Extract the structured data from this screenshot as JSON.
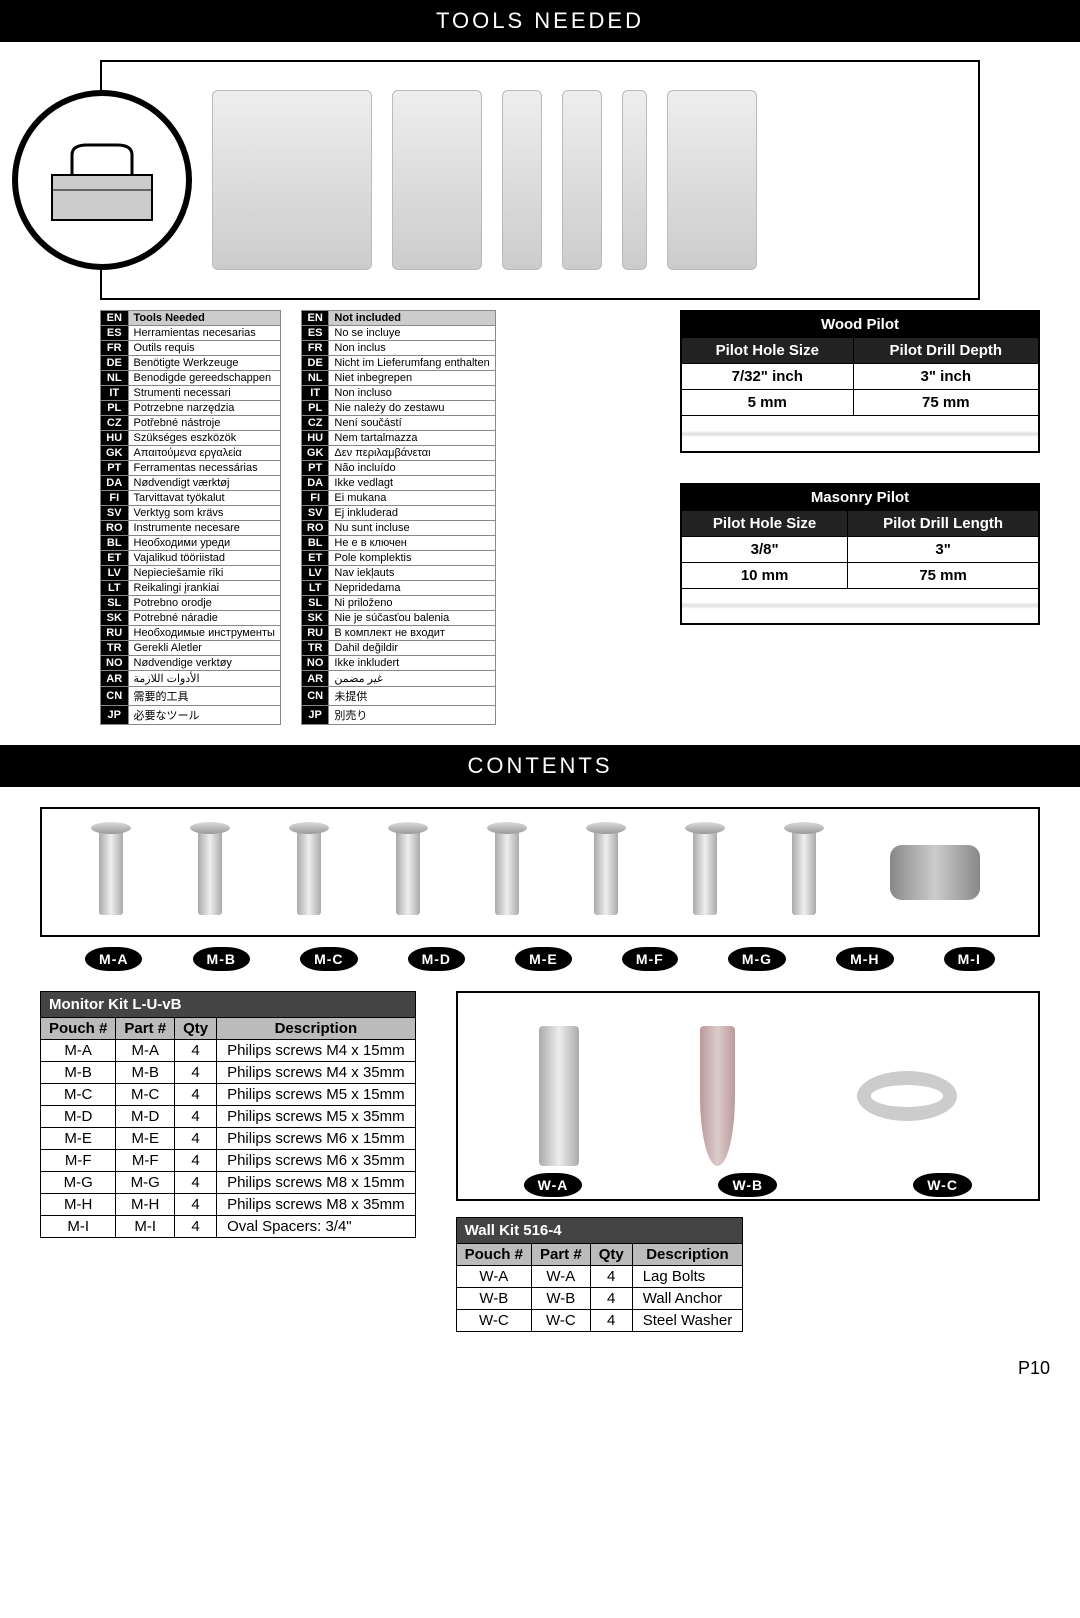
{
  "page_number": "P10",
  "sections": {
    "tools_title": "TOOLS NEEDED",
    "contents_title": "CONTENTS"
  },
  "tools_needed_translations": {
    "header": "Tools Needed",
    "rows": [
      {
        "code": "EN",
        "text": "Tools Needed"
      },
      {
        "code": "ES",
        "text": "Herramientas necesarias"
      },
      {
        "code": "FR",
        "text": "Outils requis"
      },
      {
        "code": "DE",
        "text": "Benötigte Werkzeuge"
      },
      {
        "code": "NL",
        "text": "Benodigde gereedschappen"
      },
      {
        "code": "IT",
        "text": "Strumenti necessari"
      },
      {
        "code": "PL",
        "text": "Potrzebne narzędzia"
      },
      {
        "code": "CZ",
        "text": "Potřebné nástroje"
      },
      {
        "code": "HU",
        "text": "Szükséges eszközök"
      },
      {
        "code": "GK",
        "text": "Απαιτούμενα εργαλεία"
      },
      {
        "code": "PT",
        "text": "Ferramentas necessárias"
      },
      {
        "code": "DA",
        "text": "Nødvendigt værktøj"
      },
      {
        "code": "FI",
        "text": "Tarvittavat työkalut"
      },
      {
        "code": "SV",
        "text": "Verktyg som krävs"
      },
      {
        "code": "RO",
        "text": "Instrumente necesare"
      },
      {
        "code": "BL",
        "text": "Необходими уреди"
      },
      {
        "code": "ET",
        "text": "Vajalikud tööriistad"
      },
      {
        "code": "LV",
        "text": "Nepieciešamie rīki"
      },
      {
        "code": "LT",
        "text": "Reikalingi įrankiai"
      },
      {
        "code": "SL",
        "text": "Potrebno orodje"
      },
      {
        "code": "SK",
        "text": "Potrebné náradie"
      },
      {
        "code": "RU",
        "text": "Необходимые инструменты"
      },
      {
        "code": "TR",
        "text": "Gerekli Aletler"
      },
      {
        "code": "NO",
        "text": "Nødvendige verktøy"
      },
      {
        "code": "AR",
        "text": "الأدوات اللازمة"
      },
      {
        "code": "CN",
        "text": "需要的工具"
      },
      {
        "code": "JP",
        "text": "必要なツール"
      }
    ]
  },
  "not_included_translations": {
    "header": "Not included",
    "rows": [
      {
        "code": "EN",
        "text": "Not included"
      },
      {
        "code": "ES",
        "text": "No se incluye"
      },
      {
        "code": "FR",
        "text": "Non inclus"
      },
      {
        "code": "DE",
        "text": "Nicht im Lieferumfang enthalten"
      },
      {
        "code": "NL",
        "text": "Niet inbegrepen"
      },
      {
        "code": "IT",
        "text": "Non incluso"
      },
      {
        "code": "PL",
        "text": "Nie należy do zestawu"
      },
      {
        "code": "CZ",
        "text": "Není součástí"
      },
      {
        "code": "HU",
        "text": "Nem tartalmazza"
      },
      {
        "code": "GK",
        "text": "Δεν περιλαμβάνεται"
      },
      {
        "code": "PT",
        "text": "Não incluído"
      },
      {
        "code": "DA",
        "text": "Ikke vedlagt"
      },
      {
        "code": "FI",
        "text": "Ei mukana"
      },
      {
        "code": "SV",
        "text": "Ej inkluderad"
      },
      {
        "code": "RO",
        "text": "Nu sunt incluse"
      },
      {
        "code": "BL",
        "text": "Не е в ключен"
      },
      {
        "code": "ET",
        "text": "Pole komplektis"
      },
      {
        "code": "LV",
        "text": "Nav iekļauts"
      },
      {
        "code": "LT",
        "text": "Nepridedama"
      },
      {
        "code": "SL",
        "text": "Ni priloženo"
      },
      {
        "code": "SK",
        "text": "Nie je súčasťou balenia"
      },
      {
        "code": "RU",
        "text": "В комплект не входит"
      },
      {
        "code": "TR",
        "text": "Dahil değildir"
      },
      {
        "code": "NO",
        "text": "Ikke inkludert"
      },
      {
        "code": "AR",
        "text": "غير مضمن"
      },
      {
        "code": "CN",
        "text": "未提供"
      },
      {
        "code": "JP",
        "text": "別売り"
      }
    ]
  },
  "wood_pilot": {
    "title": "Wood Pilot",
    "col1": "Pilot Hole Size",
    "col2": "Pilot Drill Depth",
    "r1c1": "7/32\" inch",
    "r1c2": "3\" inch",
    "r2c1": "5 mm",
    "r2c2": "75 mm"
  },
  "masonry_pilot": {
    "title": "Masonry Pilot",
    "col1": "Pilot Hole Size",
    "col2": "Pilot Drill Length",
    "r1c1": "3/8\"",
    "r1c2": "3\"",
    "r2c1": "10 mm",
    "r2c2": "75 mm"
  },
  "hardware_labels": [
    "M-A",
    "M-B",
    "M-C",
    "M-D",
    "M-E",
    "M-F",
    "M-G",
    "M-H",
    "M-I"
  ],
  "monitor_kit": {
    "title": "Monitor Kit L-U-vB",
    "columns": [
      "Pouch #",
      "Part #",
      "Qty",
      "Description"
    ],
    "rows": [
      [
        "M-A",
        "M-A",
        "4",
        "Philips screws M4 x 15mm"
      ],
      [
        "M-B",
        "M-B",
        "4",
        "Philips screws M4 x 35mm"
      ],
      [
        "M-C",
        "M-C",
        "4",
        "Philips screws M5 x 15mm"
      ],
      [
        "M-D",
        "M-D",
        "4",
        "Philips screws M5 x 35mm"
      ],
      [
        "M-E",
        "M-E",
        "4",
        "Philips screws M6 x 15mm"
      ],
      [
        "M-F",
        "M-F",
        "4",
        "Philips screws M6 x 35mm"
      ],
      [
        "M-G",
        "M-G",
        "4",
        "Philips screws M8 x 15mm"
      ],
      [
        "M-H",
        "M-H",
        "4",
        "Philips screws M8 x 35mm"
      ],
      [
        "M-I",
        "M-I",
        "4",
        "Oval Spacers: 3/4\""
      ]
    ]
  },
  "wall_labels": [
    "W-A",
    "W-B",
    "W-C"
  ],
  "wall_kit": {
    "title": "Wall Kit 516-4",
    "columns": [
      "Pouch #",
      "Part #",
      "Qty",
      "Description"
    ],
    "rows": [
      [
        "W-A",
        "W-A",
        "4",
        "Lag Bolts"
      ],
      [
        "W-B",
        "W-B",
        "4",
        "Wall Anchor"
      ],
      [
        "W-C",
        "W-C",
        "4",
        "Steel Washer"
      ]
    ]
  }
}
